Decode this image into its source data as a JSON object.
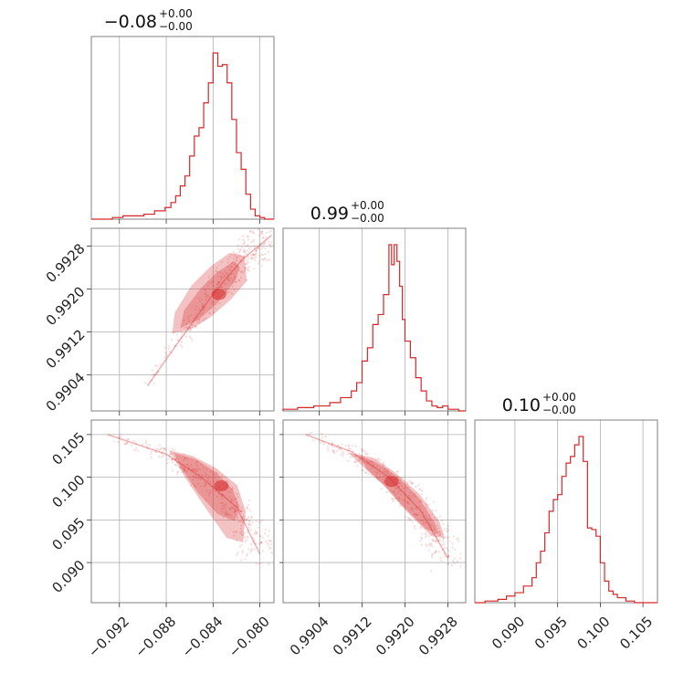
{
  "chart_data": {
    "type": "corner",
    "color": "#d62728",
    "parameters": [
      {
        "title": {
          "value": "−0.08",
          "plus": "+0.00",
          "minus": "−0.00"
        },
        "range": [
          -0.0944,
          -0.0788
        ],
        "ticks": [
          -0.092,
          -0.088,
          -0.084,
          -0.08
        ],
        "tick_labels": [
          "−0.092",
          "−0.088",
          "−0.084",
          "−0.080"
        ]
      },
      {
        "title": {
          "value": "0.99",
          "plus": "+0.00",
          "minus": "−0.00"
        },
        "range": [
          0.98973,
          0.99313
        ],
        "ticks": [
          0.9904,
          0.9912,
          0.992,
          0.9928
        ],
        "tick_labels": [
          "0.9904",
          "0.9912",
          "0.9920",
          "0.9928"
        ]
      },
      {
        "title": {
          "value": "0.10",
          "plus": "+0.00",
          "minus": "−0.00"
        },
        "range": [
          0.0853,
          0.1067
        ],
        "ticks": [
          0.09,
          0.095,
          0.1,
          0.105
        ],
        "tick_labels": [
          "0.090",
          "0.095",
          "0.100",
          "0.105"
        ]
      }
    ],
    "histograms": [
      {
        "param": 0,
        "bin_edges": [
          -0.0944,
          -0.0935,
          -0.0926,
          -0.0917,
          -0.0908,
          -0.0899,
          -0.089,
          -0.0881,
          -0.0876,
          -0.0872,
          -0.0868,
          -0.0864,
          -0.086,
          -0.0856,
          -0.0852,
          -0.0848,
          -0.0844,
          -0.084,
          -0.0836,
          -0.0832,
          -0.0828,
          -0.0824,
          -0.082,
          -0.0816,
          -0.0812,
          -0.0808,
          -0.0804,
          -0.08,
          -0.0796,
          -0.0792,
          -0.0788
        ],
        "counts": [
          0.0,
          0.0,
          0.01,
          0.02,
          0.02,
          0.03,
          0.05,
          0.07,
          0.1,
          0.14,
          0.2,
          0.26,
          0.38,
          0.5,
          0.55,
          0.7,
          0.82,
          1.0,
          0.92,
          0.93,
          0.82,
          0.6,
          0.4,
          0.3,
          0.15,
          0.06,
          0.02,
          0.01,
          0.0,
          0.0
        ]
      },
      {
        "param": 1,
        "bin_edges": [
          0.98973,
          0.99,
          0.9903,
          0.9906,
          0.9908,
          0.991,
          0.9911,
          0.9912,
          0.9913,
          0.9914,
          0.9915,
          0.9916,
          0.9917,
          0.99175,
          0.9918,
          0.99185,
          0.9919,
          0.99195,
          0.992,
          0.9921,
          0.9922,
          0.9923,
          0.9924,
          0.9925,
          0.9926,
          0.9927,
          0.9928,
          0.993,
          0.99313
        ],
        "counts": [
          0.01,
          0.02,
          0.03,
          0.05,
          0.08,
          0.12,
          0.17,
          0.3,
          0.38,
          0.52,
          0.58,
          0.7,
          1.0,
          0.88,
          1.0,
          0.9,
          0.75,
          0.55,
          0.42,
          0.32,
          0.2,
          0.12,
          0.06,
          0.03,
          0.02,
          0.03,
          0.01,
          0.0
        ]
      },
      {
        "param": 2,
        "bin_edges": [
          0.0853,
          0.0865,
          0.088,
          0.089,
          0.09,
          0.091,
          0.092,
          0.0925,
          0.093,
          0.0935,
          0.094,
          0.0945,
          0.095,
          0.0955,
          0.096,
          0.0965,
          0.097,
          0.0975,
          0.098,
          0.0985,
          0.099,
          0.0995,
          0.1,
          0.1005,
          0.101,
          0.1015,
          0.102,
          0.103,
          0.104,
          0.105,
          0.1067
        ],
        "counts": [
          0.0,
          0.01,
          0.02,
          0.04,
          0.06,
          0.1,
          0.15,
          0.24,
          0.31,
          0.42,
          0.55,
          0.62,
          0.65,
          0.76,
          0.84,
          0.88,
          0.95,
          1.0,
          0.85,
          0.45,
          0.44,
          0.4,
          0.24,
          0.13,
          0.07,
          0.05,
          0.03,
          0.01,
          0.0,
          0.0
        ]
      }
    ],
    "pairs": [
      {
        "x_param": 0,
        "y_param": 1,
        "trend": {
          "x": [
            -0.0896,
            -0.087,
            -0.084,
            -0.0815,
            -0.079
          ],
          "y": [
            0.9902,
            0.991,
            0.9919,
            0.99255,
            0.993
          ]
        },
        "contour_68": {
          "x": [
            -0.0867,
            -0.0852,
            -0.0837,
            -0.0822,
            -0.0818,
            -0.0822,
            -0.0836,
            -0.085,
            -0.0864,
            -0.0867
          ],
          "y": [
            0.9913,
            0.99145,
            0.99175,
            0.99215,
            0.9924,
            0.9925,
            0.9923,
            0.992,
            0.9916,
            0.9913
          ]
        },
        "contour_95": {
          "x": [
            -0.0874,
            -0.086,
            -0.0842,
            -0.0826,
            -0.0812,
            -0.0814,
            -0.0826,
            -0.0842,
            -0.0858,
            -0.0872,
            -0.0874
          ],
          "y": [
            0.9912,
            0.99125,
            0.9915,
            0.9918,
            0.99215,
            0.9926,
            0.99265,
            0.9924,
            0.99205,
            0.99155,
            0.9912
          ]
        },
        "mode": {
          "x": -0.0835,
          "y": 0.9919
        }
      },
      {
        "x_param": 0,
        "y_param": 2,
        "trend": {
          "x": [
            -0.093,
            -0.088,
            -0.085,
            -0.082,
            -0.08
          ],
          "y": [
            0.105,
            0.1027,
            0.1,
            0.0965,
            0.091
          ]
        },
        "contour_68": {
          "x": [
            -0.0872,
            -0.0855,
            -0.0838,
            -0.0824,
            -0.0818,
            -0.0822,
            -0.0836,
            -0.0852,
            -0.0866,
            -0.0872
          ],
          "y": [
            0.1027,
            0.102,
            0.1005,
            0.0985,
            0.0965,
            0.095,
            0.0958,
            0.0982,
            0.101,
            0.1027
          ]
        },
        "contour_95": {
          "x": [
            -0.0876,
            -0.0858,
            -0.0838,
            -0.082,
            -0.0813,
            -0.0815,
            -0.0828,
            -0.0846,
            -0.0864,
            -0.0876
          ],
          "y": [
            0.103,
            0.1024,
            0.101,
            0.099,
            0.096,
            0.0925,
            0.093,
            0.0965,
            0.1002,
            0.103
          ]
        },
        "mode": {
          "x": -0.0833,
          "y": 0.099
        }
      },
      {
        "x_param": 1,
        "y_param": 2,
        "trend": {
          "x": [
            0.99015,
            0.991,
            0.9917,
            0.9923,
            0.9928
          ],
          "y": [
            0.105,
            0.103,
            0.1,
            0.096,
            0.0905
          ]
        },
        "contour_68": {
          "x": [
            0.9912,
            0.9915,
            0.99185,
            0.99225,
            0.99255,
            0.9926,
            0.9924,
            0.992,
            0.99165,
            0.9913,
            0.9912
          ],
          "y": [
            0.1023,
            0.1015,
            0.1,
            0.0975,
            0.0945,
            0.0935,
            0.094,
            0.0965,
            0.099,
            0.101,
            0.1023
          ]
        },
        "contour_95": {
          "x": [
            0.991,
            0.9914,
            0.9918,
            0.99225,
            0.99262,
            0.99272,
            0.9925,
            0.99205,
            0.9916,
            0.99115,
            0.991
          ],
          "y": [
            0.1027,
            0.1022,
            0.1005,
            0.098,
            0.0948,
            0.093,
            0.0932,
            0.096,
            0.0992,
            0.1018,
            0.1027
          ]
        },
        "mode": {
          "x": 0.99175,
          "y": 0.0995
        }
      }
    ],
    "grid": true
  }
}
